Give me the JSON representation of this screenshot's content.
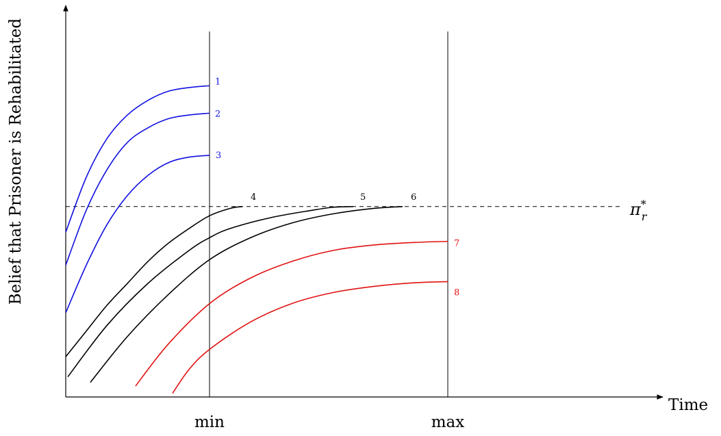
{
  "chart_data": {
    "type": "line",
    "ylabel": "Belief that Prisoner is Rehabilitated",
    "xlabel": "Time",
    "xlim": [
      0,
      10
    ],
    "ylim": [
      0,
      10
    ],
    "vlines": [
      {
        "x": 3.5,
        "label": "min"
      },
      {
        "x": 9.3,
        "label": "max"
      }
    ],
    "threshold": {
      "y": 5.2,
      "symbol": "π",
      "sup": "*",
      "sub": "r"
    },
    "colors": {
      "blue": "#1010e0",
      "black": "#000000",
      "red": "#e01010"
    },
    "series": [
      {
        "name": "1",
        "color": "blue",
        "x": [
          0.0,
          0.5,
          1.0,
          1.5,
          2.0,
          2.5,
          3.0,
          3.5
        ],
        "y": [
          4.5,
          6.0,
          7.05,
          7.7,
          8.1,
          8.35,
          8.45,
          8.5
        ]
      },
      {
        "name": "2",
        "color": "blue",
        "x": [
          0.0,
          0.5,
          1.0,
          1.5,
          2.0,
          2.5,
          3.0,
          3.5
        ],
        "y": [
          3.6,
          5.1,
          6.2,
          6.95,
          7.35,
          7.6,
          7.7,
          7.75
        ]
      },
      {
        "name": "3",
        "color": "blue",
        "x": [
          0.0,
          0.5,
          1.0,
          1.5,
          2.0,
          2.5,
          3.0,
          3.5
        ],
        "y": [
          2.3,
          3.6,
          4.7,
          5.5,
          6.05,
          6.4,
          6.55,
          6.6
        ]
      },
      {
        "name": "4",
        "color": "black",
        "x": [
          0.0,
          0.5,
          1.0,
          1.5,
          2.0,
          2.5,
          3.0,
          3.5,
          4.0,
          4.3
        ],
        "y": [
          1.1,
          1.8,
          2.5,
          3.1,
          3.7,
          4.2,
          4.6,
          4.95,
          5.15,
          5.2
        ]
      },
      {
        "name": "5",
        "color": "black",
        "x": [
          0.05,
          1.0,
          2.0,
          3.0,
          3.5,
          4.0,
          5.0,
          6.0,
          6.5,
          7.0
        ],
        "y": [
          0.55,
          1.95,
          3.1,
          4.0,
          4.35,
          4.6,
          4.9,
          5.1,
          5.18,
          5.2
        ]
      },
      {
        "name": "6",
        "color": "black",
        "x": [
          0.6,
          1.5,
          2.5,
          3.5,
          4.5,
          5.5,
          6.5,
          7.5,
          8.2
        ],
        "y": [
          0.4,
          1.65,
          2.8,
          3.75,
          4.35,
          4.75,
          5.0,
          5.15,
          5.2
        ]
      },
      {
        "name": "7",
        "color": "red",
        "x": [
          1.7,
          2.5,
          3.5,
          4.5,
          5.5,
          6.5,
          7.5,
          8.5,
          9.3
        ],
        "y": [
          0.3,
          1.45,
          2.55,
          3.25,
          3.7,
          4.0,
          4.15,
          4.22,
          4.25
        ]
      },
      {
        "name": "8",
        "color": "red",
        "x": [
          2.6,
          3.0,
          3.5,
          4.5,
          5.5,
          6.5,
          7.5,
          8.5,
          9.3
        ],
        "y": [
          0.1,
          0.75,
          1.3,
          2.05,
          2.55,
          2.85,
          3.02,
          3.12,
          3.15
        ]
      }
    ]
  }
}
